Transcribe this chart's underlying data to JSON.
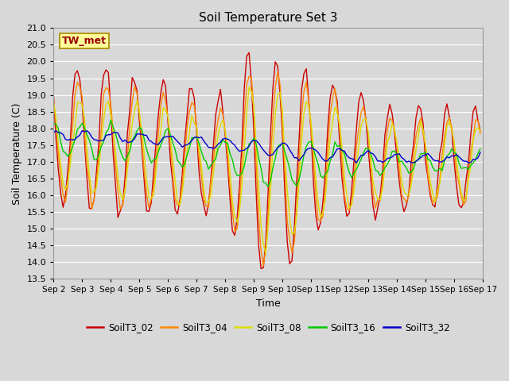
{
  "title": "Soil Temperature Set 3",
  "xlabel": "Time",
  "ylabel": "Soil Temperature (C)",
  "annotation": "TW_met",
  "ylim": [
    13.5,
    21.0
  ],
  "yticks": [
    13.5,
    14.0,
    14.5,
    15.0,
    15.5,
    16.0,
    16.5,
    17.0,
    17.5,
    18.0,
    18.5,
    19.0,
    19.5,
    20.0,
    20.5,
    21.0
  ],
  "xtick_labels": [
    "Sep 2",
    "Sep 3",
    "Sep 4",
    "Sep 5",
    "Sep 6",
    "Sep 7",
    "Sep 8",
    "Sep 9",
    "Sep 10",
    "Sep 11",
    "Sep 12",
    "Sep 13",
    "Sep 14",
    "Sep 15",
    "Sep 16",
    "Sep 17"
  ],
  "series_colors": {
    "SoilT3_02": "#cc0000",
    "SoilT3_04": "#ff8800",
    "SoilT3_08": "#dddd00",
    "SoilT3_16": "#00cc00",
    "SoilT3_32": "#0000cc"
  },
  "background_color": "#d8d8d8",
  "grid_color": "#ffffff",
  "annotation_bg": "#ffff99",
  "annotation_border": "#aa8800",
  "figsize": [
    6.4,
    4.8
  ],
  "dpi": 100
}
